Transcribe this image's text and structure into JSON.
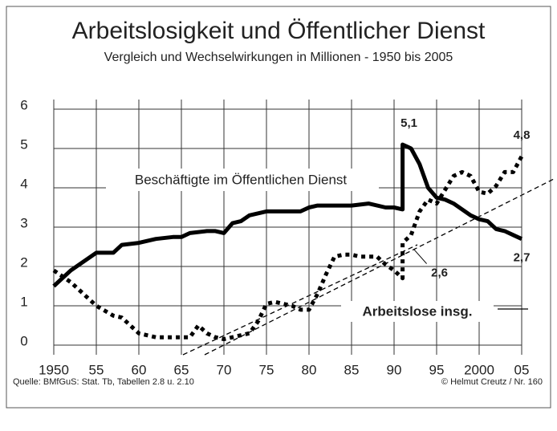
{
  "chart_data": {
    "type": "line",
    "title": "Arbeitslosigkeit und Öffentlicher Dienst",
    "subtitle": "Vergleich und Wechselwirkungen in Millionen  -  1950 bis 2005",
    "source": "Quelle: BMfGuS:  Stat. Tb, Tabellen  2.8 u. 2.10",
    "credit": "©  Helmut Creutz / Nr. 160",
    "xlim": [
      1950,
      2005
    ],
    "xticks": [
      1950,
      {
        "value": 1955,
        "label": "55"
      },
      {
        "value": 1960,
        "label": "60"
      },
      {
        "value": 1965,
        "label": "65"
      },
      {
        "value": 1970,
        "label": "70"
      },
      {
        "value": 1975,
        "label": "75"
      },
      {
        "value": 1980,
        "label": "80"
      },
      {
        "value": 1985,
        "label": "85"
      },
      {
        "value": 1990,
        "label": "90"
      },
      {
        "value": 1995,
        "label": "95"
      },
      2000,
      {
        "value": 2005,
        "label": "05"
      }
    ],
    "ylim": [
      0,
      6
    ],
    "yticks": [
      0,
      1,
      2,
      3,
      4,
      5,
      6
    ],
    "grid": true,
    "series": [
      {
        "name": "Beschäftigte im Öffentlichen Dienst",
        "color": "#000000",
        "line_style": "solid",
        "x": [
          1950,
          1952,
          1955,
          1957,
          1958,
          1960,
          1962,
          1964,
          1965,
          1966,
          1968,
          1969,
          1970,
          1971,
          1972,
          1973,
          1975,
          1977,
          1979,
          1980,
          1981,
          1985,
          1987,
          1989,
          1990,
          1991,
          1991,
          1992,
          1993,
          1994,
          1995,
          1996,
          1997,
          1998,
          1999,
          2000,
          2001,
          2002,
          2003,
          2004,
          2005
        ],
        "values": [
          1.5,
          1.9,
          2.35,
          2.35,
          2.55,
          2.6,
          2.7,
          2.75,
          2.75,
          2.85,
          2.9,
          2.9,
          2.85,
          3.1,
          3.15,
          3.3,
          3.4,
          3.4,
          3.4,
          3.5,
          3.55,
          3.55,
          3.6,
          3.5,
          3.5,
          3.45,
          5.1,
          5.0,
          4.6,
          4.0,
          3.75,
          3.7,
          3.6,
          3.45,
          3.3,
          3.2,
          3.15,
          2.95,
          2.9,
          2.8,
          2.7
        ],
        "value_labels": [
          null,
          null,
          null,
          null,
          null,
          null,
          null,
          null,
          null,
          null,
          null,
          null,
          null,
          null,
          null,
          null,
          null,
          null,
          null,
          null,
          null,
          null,
          null,
          null,
          null,
          null,
          "5,1",
          null,
          null,
          null,
          null,
          null,
          null,
          null,
          null,
          null,
          null,
          null,
          null,
          null,
          "2,7"
        ]
      },
      {
        "name": "Arbeitslose insg.",
        "color": "#000000",
        "line_style": "dotted",
        "x": [
          1950,
          1952,
          1954,
          1955,
          1957,
          1958,
          1960,
          1962,
          1964,
          1966,
          1967,
          1968,
          1969,
          1970,
          1971,
          1973,
          1974,
          1975,
          1976,
          1977,
          1978,
          1979,
          1980,
          1981,
          1982,
          1983,
          1984,
          1985,
          1986,
          1987,
          1988,
          1989,
          1990,
          1991,
          1991,
          1992,
          1993,
          1994,
          1995,
          1996,
          1997,
          1998,
          1999,
          2000,
          2001,
          2002,
          2003,
          2004,
          2005
        ],
        "values": [
          1.9,
          1.6,
          1.2,
          1.0,
          0.75,
          0.7,
          0.3,
          0.2,
          0.2,
          0.2,
          0.5,
          0.3,
          0.2,
          0.15,
          0.2,
          0.3,
          0.6,
          1.05,
          1.1,
          1.05,
          1.0,
          0.9,
          0.9,
          1.3,
          1.8,
          2.25,
          2.3,
          2.3,
          2.25,
          2.25,
          2.25,
          2.05,
          1.9,
          1.7,
          2.6,
          2.8,
          3.4,
          3.7,
          3.6,
          3.95,
          4.3,
          4.4,
          4.3,
          3.9,
          3.85,
          4.05,
          4.4,
          4.4,
          4.8
        ],
        "value_labels": [
          null,
          null,
          null,
          null,
          null,
          null,
          null,
          null,
          null,
          null,
          null,
          null,
          null,
          null,
          null,
          null,
          null,
          null,
          null,
          null,
          null,
          null,
          null,
          null,
          null,
          null,
          null,
          null,
          null,
          null,
          null,
          null,
          null,
          null,
          "2,6",
          null,
          null,
          null,
          null,
          null,
          null,
          null,
          null,
          null,
          null,
          null,
          null,
          null,
          "4,8"
        ]
      }
    ]
  }
}
